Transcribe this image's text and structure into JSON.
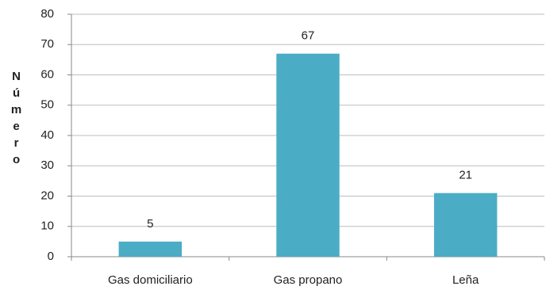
{
  "chart_data": {
    "type": "bar",
    "y_label": "Número",
    "categories": [
      "Gas domiciliario",
      "Gas propano",
      "Leña"
    ],
    "values": [
      5,
      67,
      21
    ],
    "color": "#4bacc6",
    "ylim": [
      0,
      80
    ],
    "yticks": [
      0,
      10,
      20,
      30,
      40,
      50,
      60,
      70,
      80
    ],
    "grid": true
  }
}
